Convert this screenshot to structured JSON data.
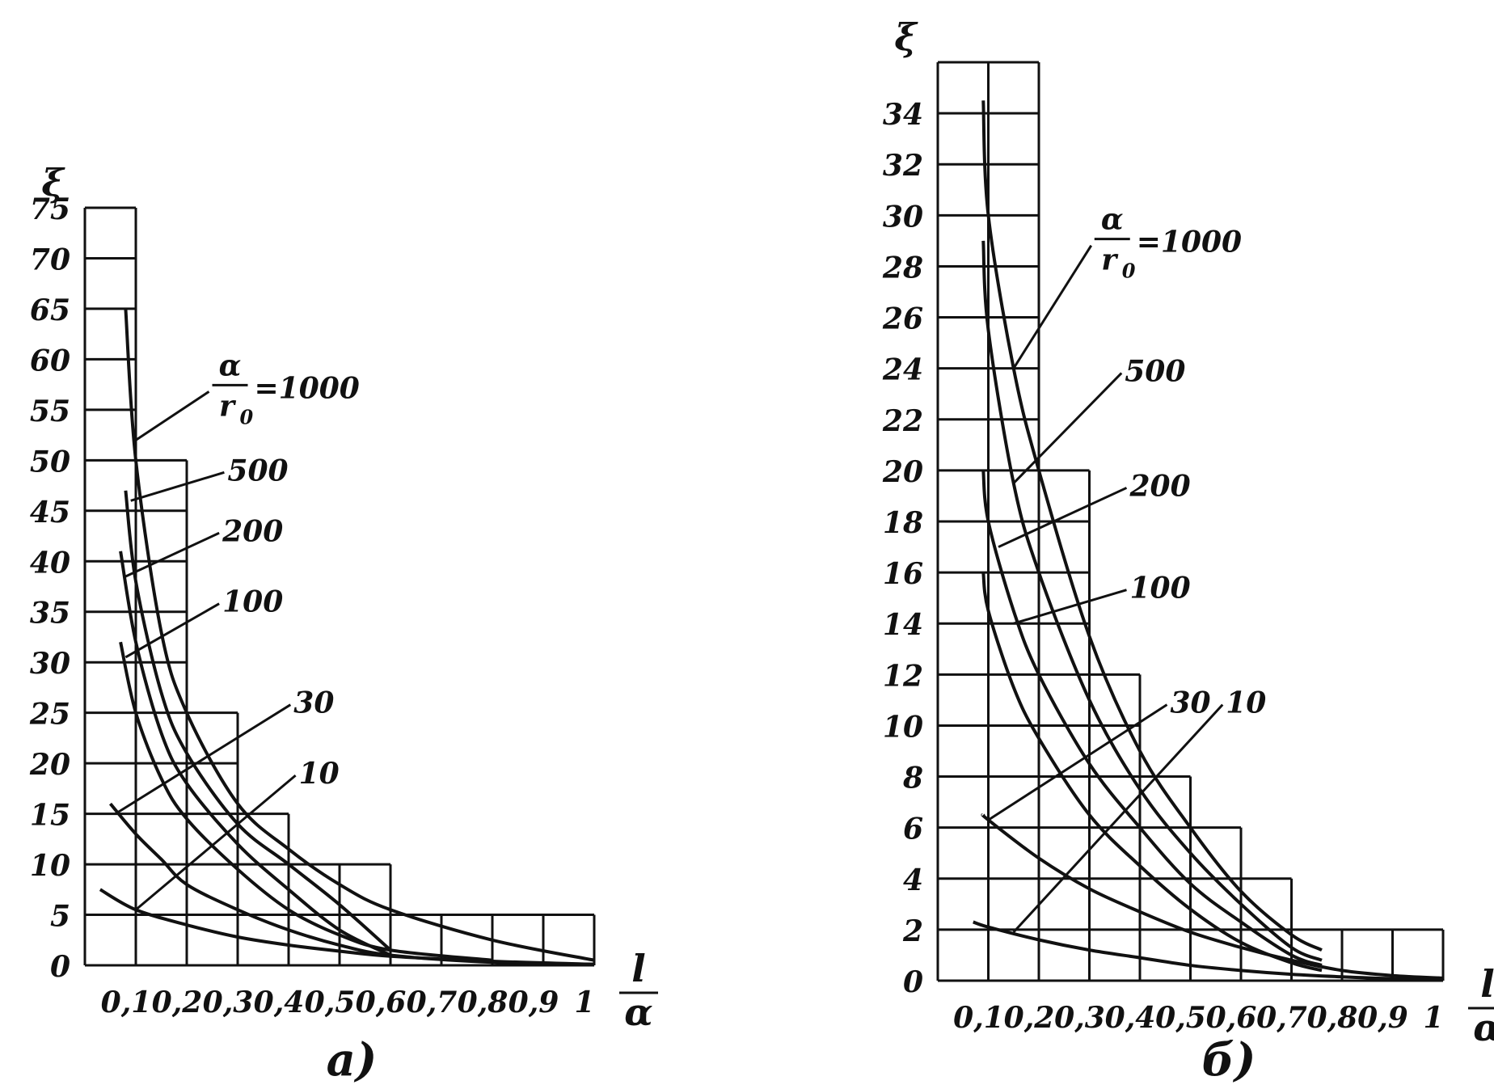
{
  "chart_data": [
    {
      "panel_label": "а)",
      "type": "line",
      "y_symbol": "ξ",
      "x_label_num": "l",
      "x_label_den": "α",
      "param_label": {
        "num": "α",
        "den": "r",
        "den_sub": "0",
        "eq": "=1000"
      },
      "xlim": [
        0,
        1
      ],
      "ylim": [
        0,
        75
      ],
      "x_ticks": [
        0.1,
        0.2,
        0.3,
        0.4,
        0.5,
        0.6,
        0.7,
        0.8,
        0.9,
        1
      ],
      "x_tick_labels": [
        "0,1",
        "0,2",
        "0,3",
        "0,4",
        "0,5",
        "0,6",
        "0,7",
        "0,8",
        "0,9",
        "1"
      ],
      "y_ticks": [
        0,
        5,
        10,
        15,
        20,
        25,
        30,
        35,
        40,
        45,
        50,
        55,
        60,
        65,
        70,
        75
      ],
      "y_tick_labels": [
        "0",
        "5",
        "10",
        "15",
        "20",
        "25",
        "30",
        "35",
        "40",
        "45",
        "50",
        "55",
        "60",
        "65",
        "70",
        "75"
      ],
      "grid_steps": [
        {
          "x_max": 0.1,
          "y_max": 75
        },
        {
          "x_max": 0.2,
          "y_max": 50
        },
        {
          "x_max": 0.3,
          "y_max": 25
        },
        {
          "x_max": 0.4,
          "y_max": 15
        },
        {
          "x_max": 0.6,
          "y_max": 10
        },
        {
          "x_max": 1.0,
          "y_max": 5
        }
      ],
      "series": [
        {
          "name": "1000",
          "label": "",
          "x": [
            0.08,
            0.1,
            0.15,
            0.2,
            0.3,
            0.4,
            0.5,
            0.6,
            0.8,
            1.0
          ],
          "y": [
            65,
            50,
            33,
            25,
            16,
            11.5,
            8,
            5.5,
            2.5,
            0.5
          ],
          "label_at": [
            0.1,
            52
          ]
        },
        {
          "name": "500",
          "label": "500",
          "x": [
            0.08,
            0.1,
            0.15,
            0.2,
            0.3,
            0.4,
            0.5,
            0.6
          ],
          "y": [
            47,
            38,
            27,
            21,
            14,
            10,
            6,
            1.5
          ],
          "label_at": [
            0.09,
            46
          ]
        },
        {
          "name": "200",
          "label": "200",
          "x": [
            0.07,
            0.1,
            0.15,
            0.2,
            0.3,
            0.4,
            0.5,
            0.6
          ],
          "y": [
            41,
            32,
            23,
            18,
            12,
            7.5,
            3.5,
            1
          ],
          "label_at": [
            0.08,
            38.5
          ]
        },
        {
          "name": "100",
          "label": "100",
          "x": [
            0.07,
            0.1,
            0.15,
            0.2,
            0.3,
            0.4,
            0.5,
            0.6,
            0.8
          ],
          "y": [
            32,
            25,
            18.5,
            14.5,
            9.5,
            5.5,
            3,
            1.5,
            0.5
          ],
          "label_at": [
            0.08,
            30.5
          ]
        },
        {
          "name": "30",
          "label": "30",
          "x": [
            0.05,
            0.1,
            0.15,
            0.2,
            0.3,
            0.4,
            0.5,
            0.6,
            0.8,
            1.0
          ],
          "y": [
            16,
            13,
            10.5,
            8,
            5.5,
            3.5,
            2,
            1,
            0.3,
            0.1
          ],
          "label_at": [
            0.06,
            15
          ]
        },
        {
          "name": "10",
          "label": "10",
          "x": [
            0.03,
            0.1,
            0.2,
            0.3,
            0.4,
            0.5,
            0.6,
            0.8,
            1.0
          ],
          "y": [
            7.5,
            5.5,
            4,
            2.8,
            2,
            1.4,
            0.9,
            0.4,
            0.1
          ],
          "label_at": [
            0.1,
            5.5
          ]
        }
      ],
      "label_positions": [
        {
          "name": "1000",
          "at": [
            0.25,
            56
          ]
        },
        {
          "name": "500",
          "at": [
            0.28,
            48
          ]
        },
        {
          "name": "200",
          "at": [
            0.27,
            42
          ]
        },
        {
          "name": "100",
          "at": [
            0.27,
            35
          ]
        },
        {
          "name": "30",
          "at": [
            0.41,
            25
          ]
        },
        {
          "name": "10",
          "at": [
            0.42,
            18
          ]
        }
      ]
    },
    {
      "panel_label": "б)",
      "type": "line",
      "y_symbol": "ξ",
      "x_label_num": "l",
      "x_label_den": "α",
      "param_label": {
        "num": "α",
        "den": "r",
        "den_sub": "0",
        "eq": "=1000"
      },
      "xlim": [
        0,
        1
      ],
      "ylim": [
        0,
        36
      ],
      "x_ticks": [
        0.1,
        0.2,
        0.3,
        0.4,
        0.5,
        0.6,
        0.7,
        0.8,
        0.9,
        1
      ],
      "x_tick_labels": [
        "0,1",
        "0,2",
        "0,3",
        "0,4",
        "0,5",
        "0,6",
        "0,7",
        "0,8",
        "0,9",
        "1"
      ],
      "y_ticks": [
        0,
        2,
        4,
        6,
        8,
        10,
        12,
        14,
        16,
        18,
        20,
        22,
        24,
        26,
        28,
        30,
        32,
        34
      ],
      "y_tick_labels": [
        "0",
        "2",
        "4",
        "6",
        "8",
        "10",
        "12",
        "14",
        "16",
        "18",
        "20",
        "22",
        "24",
        "26",
        "28",
        "30",
        "32",
        "34"
      ],
      "grid_steps": [
        {
          "x_max": 0.1,
          "y_max": 36
        },
        {
          "x_max": 0.2,
          "y_max": 36
        },
        {
          "x_max": 0.3,
          "y_max": 20
        },
        {
          "x_max": 0.4,
          "y_max": 12
        },
        {
          "x_max": 0.5,
          "y_max": 8
        },
        {
          "x_max": 0.6,
          "y_max": 6
        },
        {
          "x_max": 0.7,
          "y_max": 4
        },
        {
          "x_max": 1.0,
          "y_max": 2
        }
      ],
      "series": [
        {
          "name": "1000",
          "label": "",
          "x": [
            0.09,
            0.1,
            0.15,
            0.2,
            0.3,
            0.4,
            0.5,
            0.6,
            0.7,
            0.76
          ],
          "y": [
            34.5,
            30,
            24,
            20,
            13.5,
            9,
            6,
            3.5,
            1.8,
            1.2
          ]
        },
        {
          "name": "500",
          "label": "500",
          "x": [
            0.09,
            0.1,
            0.15,
            0.2,
            0.3,
            0.4,
            0.5,
            0.6,
            0.7,
            0.76
          ],
          "y": [
            29,
            25.5,
            19.5,
            16,
            11,
            7.5,
            5,
            3,
            1.3,
            0.8
          ]
        },
        {
          "name": "200",
          "label": "200",
          "x": [
            0.09,
            0.1,
            0.15,
            0.2,
            0.3,
            0.4,
            0.5,
            0.6,
            0.7,
            0.76
          ],
          "y": [
            20,
            18,
            14.5,
            12,
            8.5,
            6,
            3.8,
            2.3,
            1,
            0.6
          ]
        },
        {
          "name": "100",
          "label": "100",
          "x": [
            0.09,
            0.1,
            0.15,
            0.2,
            0.3,
            0.4,
            0.5,
            0.6,
            0.7,
            0.76
          ],
          "y": [
            16,
            14.5,
            11.5,
            9.5,
            6.5,
            4.5,
            2.8,
            1.5,
            0.7,
            0.4
          ]
        },
        {
          "name": "30",
          "label": "30",
          "x": [
            0.09,
            0.1,
            0.2,
            0.3,
            0.4,
            0.5,
            0.6,
            0.7,
            0.8,
            0.9,
            1.0
          ],
          "y": [
            6.5,
            6.3,
            4.8,
            3.6,
            2.7,
            1.9,
            1.3,
            0.8,
            0.4,
            0.2,
            0.1
          ]
        },
        {
          "name": "10",
          "label": "10",
          "x": [
            0.07,
            0.1,
            0.2,
            0.3,
            0.4,
            0.5,
            0.6,
            0.7,
            0.8,
            0.9,
            1.0
          ],
          "y": [
            2.3,
            2.1,
            1.6,
            1.2,
            0.9,
            0.6,
            0.4,
            0.25,
            0.15,
            0.08,
            0.05
          ]
        }
      ],
      "label_positions": [
        {
          "name": "1000",
          "at": [
            0.31,
            28.5
          ]
        },
        {
          "name": "500",
          "at": [
            0.37,
            23.5
          ]
        },
        {
          "name": "200",
          "at": [
            0.38,
            19
          ]
        },
        {
          "name": "100",
          "at": [
            0.38,
            15
          ]
        },
        {
          "name": "30",
          "at": [
            0.46,
            10.5
          ]
        },
        {
          "name": "10",
          "at": [
            0.57,
            10.5
          ]
        }
      ]
    }
  ]
}
